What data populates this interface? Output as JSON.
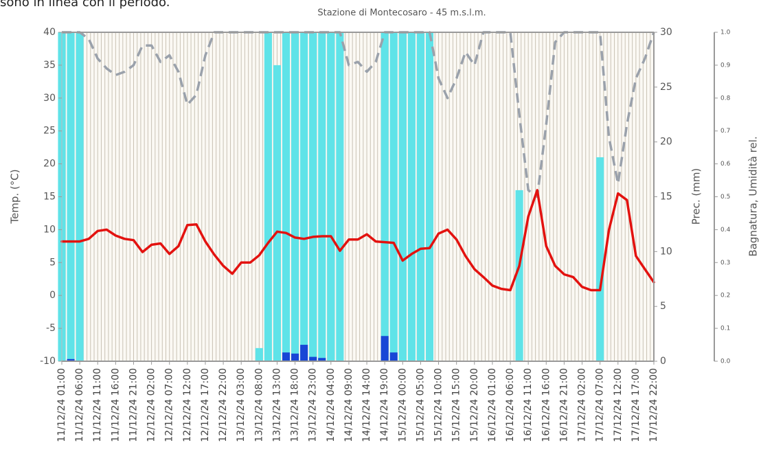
{
  "top_text": "sono in linea con il periodo.",
  "chart_data": {
    "type": "line",
    "title": "Stazione di Montecosaro - 45 m.s.l.m.",
    "y_label": "Temp. (°C)",
    "y2_label": "Prec. (mm)",
    "y3_label": "Bagnatura, Umidità rel.",
    "categories": [
      "11/12/24 01:00",
      null,
      "11/12/24 06:00",
      null,
      "11/12/24 11:00",
      null,
      "11/12/24 16:00",
      null,
      "11/12/24 21:00",
      null,
      "12/12/24 02:00",
      null,
      "12/12/24 07:00",
      null,
      "12/12/24 12:00",
      null,
      "12/12/24 17:00",
      null,
      "12/12/24 22:00",
      null,
      "13/12/24 03:00",
      null,
      "13/12/24 08:00",
      null,
      "13/12/24 13:00",
      null,
      "13/12/24 18:00",
      null,
      "13/12/24 23:00",
      null,
      "14/12/24 04:00",
      null,
      "14/12/24 09:00",
      null,
      "14/12/24 14:00",
      null,
      "14/12/24 19:00",
      null,
      "15/12/24 00:00",
      null,
      "15/12/24 05:00",
      null,
      "15/12/24 10:00",
      null,
      "15/12/24 15:00",
      null,
      "15/12/24 20:00",
      null,
      "16/12/24 01:00",
      null,
      "16/12/24 06:00",
      null,
      "16/12/24 11:00",
      null,
      "16/12/24 16:00",
      null,
      "16/12/24 21:00",
      null,
      "17/12/24 02:00",
      null,
      "17/12/24 07:00",
      null,
      "17/12/24 12:00",
      null,
      "17/12/24 17:00",
      null,
      "17/12/24 22:00"
    ],
    "series": [
      {
        "kind": "bar",
        "axis": "y3",
        "color": "#5fe3e8",
        "values": [
          1,
          1,
          1,
          0,
          0,
          0,
          0,
          0,
          0,
          0,
          0,
          0,
          0,
          0,
          0,
          0,
          0,
          0,
          0,
          0,
          0,
          0,
          0.04,
          1,
          0.9,
          1,
          1,
          1,
          1,
          1,
          1,
          1,
          0,
          0,
          0,
          0,
          1,
          1,
          1,
          1,
          1,
          1,
          0,
          0,
          0,
          0,
          0,
          0,
          0,
          0,
          0,
          0.52,
          0,
          0,
          0,
          0,
          0,
          0,
          0,
          0,
          0.62,
          0,
          0,
          0,
          0,
          0,
          0
        ]
      },
      {
        "kind": "bar",
        "axis": "y2",
        "color": "#1846d6",
        "values": [
          0,
          0.2,
          0,
          0,
          0,
          0,
          0,
          0,
          0,
          0,
          0,
          0,
          0,
          0,
          0,
          0,
          0,
          0,
          0,
          0,
          0,
          0,
          0,
          0,
          0,
          0.8,
          0.7,
          1.5,
          0.4,
          0.3,
          0,
          0,
          0,
          0,
          0,
          0,
          2.3,
          0.8,
          0,
          0,
          0,
          0,
          0,
          0,
          0,
          0,
          0,
          0,
          0,
          0,
          0,
          0,
          0,
          0,
          0,
          0,
          0,
          0,
          0,
          0,
          0,
          0,
          0,
          0,
          0,
          0,
          0
        ]
      },
      {
        "kind": "dashed",
        "axis": "y3",
        "color": "#9aa1ab",
        "values": [
          1,
          1,
          1,
          0.98,
          0.92,
          0.89,
          0.87,
          0.88,
          0.9,
          0.96,
          0.96,
          0.91,
          0.93,
          0.88,
          0.78,
          0.81,
          0.93,
          1,
          1,
          1,
          1,
          1,
          1,
          1,
          1,
          1,
          1,
          1,
          1,
          1,
          1,
          1,
          0.9,
          0.91,
          0.88,
          0.91,
          1,
          1,
          1,
          1,
          1,
          1,
          0.86,
          0.8,
          0.86,
          0.94,
          0.9,
          1,
          1,
          1,
          1,
          0.75,
          0.52,
          0.5,
          0.72,
          0.97,
          1,
          1,
          1,
          1,
          1,
          0.68,
          0.54,
          0.72,
          0.86,
          0.92,
          1
        ]
      },
      {
        "kind": "line",
        "axis": "y",
        "color": "#e3120f",
        "values": [
          8.2,
          8.2,
          8.2,
          8.6,
          9.8,
          10,
          9.1,
          8.6,
          8.4,
          6.6,
          7.7,
          7.9,
          6.3,
          7.5,
          10.7,
          10.8,
          8.2,
          6.2,
          4.5,
          3.3,
          5,
          5,
          6.1,
          8,
          9.7,
          9.5,
          8.8,
          8.6,
          8.9,
          9,
          9,
          6.8,
          8.5,
          8.5,
          9.3,
          8.2,
          8.1,
          8,
          5.3,
          6.3,
          7.1,
          7.2,
          9.4,
          10,
          8.5,
          6,
          4,
          2.8,
          1.5,
          1,
          0.8,
          4.5,
          12,
          16,
          7.5,
          4.5,
          3.2,
          2.8,
          1.3,
          0.8,
          0.8,
          10,
          15.5,
          14.5,
          6,
          4,
          2
        ]
      }
    ],
    "ylim": [
      -10,
      40
    ],
    "yticks": [
      -10,
      -5,
      0,
      5,
      10,
      15,
      20,
      25,
      30,
      35,
      40
    ],
    "y2lim": [
      0,
      30
    ],
    "y2ticks": [
      0,
      5,
      10,
      15,
      20,
      25,
      30
    ],
    "y3lim": [
      0,
      1
    ],
    "y3ticks": [
      {
        "value": 0,
        "label": "0.0"
      },
      0.1,
      0.2,
      0.3,
      0.4,
      0.5,
      0.6,
      0.7,
      0.8,
      0.9,
      {
        "value": 1,
        "label": "1.0"
      }
    ]
  }
}
